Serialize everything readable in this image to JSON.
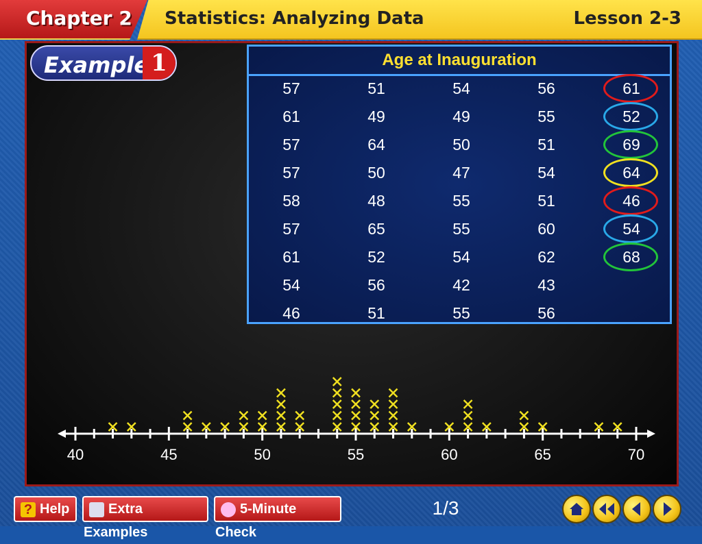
{
  "header": {
    "chapter": "Chapter 2",
    "title": "Statistics: Analyzing Data",
    "lesson": "Lesson 2-3"
  },
  "example": {
    "word": "Example",
    "number": "1"
  },
  "table": {
    "title": "Age at Inauguration",
    "rows": [
      [
        "57",
        "51",
        "54",
        "56",
        "61"
      ],
      [
        "61",
        "49",
        "49",
        "55",
        "52"
      ],
      [
        "57",
        "64",
        "50",
        "51",
        "69"
      ],
      [
        "57",
        "50",
        "47",
        "54",
        "64"
      ],
      [
        "58",
        "48",
        "55",
        "51",
        "46"
      ],
      [
        "57",
        "65",
        "55",
        "60",
        "54"
      ],
      [
        "61",
        "52",
        "54",
        "62",
        "68"
      ],
      [
        "54",
        "56",
        "42",
        "43",
        ""
      ],
      [
        "46",
        "51",
        "55",
        "56",
        ""
      ]
    ],
    "circled_colors": [
      "#e01b1b",
      "#29a8e8",
      "#22c43a",
      "#f0e020",
      "#e01b1b",
      "#29a8e8",
      "#22c43a"
    ]
  },
  "chart_data": {
    "type": "line-plot",
    "xlim": [
      40,
      70
    ],
    "tick_labels": [
      "40",
      "45",
      "50",
      "55",
      "60",
      "65",
      "70"
    ],
    "counts": {
      "42": 1,
      "43": 1,
      "46": 2,
      "47": 1,
      "48": 1,
      "49": 2,
      "50": 2,
      "51": 4,
      "52": 2,
      "54": 5,
      "55": 4,
      "56": 3,
      "57": 4,
      "58": 1,
      "60": 1,
      "61": 3,
      "62": 1,
      "64": 2,
      "65": 1,
      "68": 1,
      "69": 1
    },
    "mark_color": "#f0e020"
  },
  "footer": {
    "help": "Help",
    "extra_examples": "Extra Examples",
    "five_minute_check": "5-Minute Check",
    "page": "1/3"
  }
}
